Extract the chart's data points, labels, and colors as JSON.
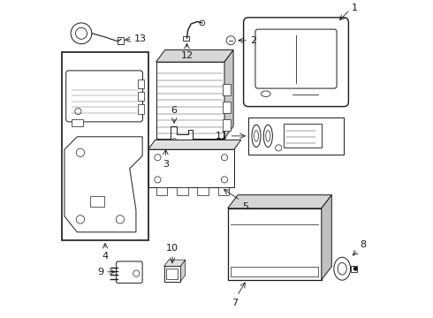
{
  "background_color": "#ffffff",
  "line_color": "#1a1a1a",
  "components": {
    "13": {
      "label": "13",
      "arrow_from": [
        0.225,
        0.878
      ],
      "arrow_to": [
        0.195,
        0.878
      ]
    },
    "12": {
      "label": "12",
      "arrow_from": [
        0.408,
        0.818
      ],
      "arrow_to": [
        0.408,
        0.845
      ]
    },
    "2": {
      "label": "2",
      "arrow_from": [
        0.545,
        0.872
      ],
      "arrow_to": [
        0.52,
        0.872
      ]
    },
    "1": {
      "label": "1",
      "arrow_from": [
        0.86,
        0.96
      ],
      "arrow_to": [
        0.84,
        0.95
      ]
    },
    "3": {
      "label": "3",
      "arrow_from": [
        0.42,
        0.555
      ],
      "arrow_to": [
        0.42,
        0.525
      ]
    },
    "6": {
      "label": "6",
      "arrow_from": [
        0.365,
        0.66
      ],
      "arrow_to": [
        0.365,
        0.635
      ]
    },
    "11": {
      "label": "11",
      "arrow_from": [
        0.575,
        0.435
      ],
      "arrow_to": [
        0.555,
        0.435
      ]
    },
    "5": {
      "label": "5",
      "arrow_from": [
        0.52,
        0.44
      ],
      "arrow_to": [
        0.52,
        0.415
      ]
    },
    "4": {
      "label": "4",
      "arrow_from": [
        0.115,
        0.235
      ],
      "arrow_to": [
        0.115,
        0.21
      ]
    },
    "10": {
      "label": "10",
      "arrow_from": [
        0.36,
        0.265
      ],
      "arrow_to": [
        0.36,
        0.24
      ]
    },
    "9": {
      "label": "9",
      "arrow_from": [
        0.175,
        0.138
      ],
      "arrow_to": [
        0.19,
        0.138
      ]
    },
    "7": {
      "label": "7",
      "arrow_from": [
        0.625,
        0.15
      ],
      "arrow_to": [
        0.625,
        0.125
      ]
    },
    "8": {
      "label": "8",
      "arrow_from": [
        0.895,
        0.175
      ],
      "arrow_to": [
        0.875,
        0.175
      ]
    }
  }
}
